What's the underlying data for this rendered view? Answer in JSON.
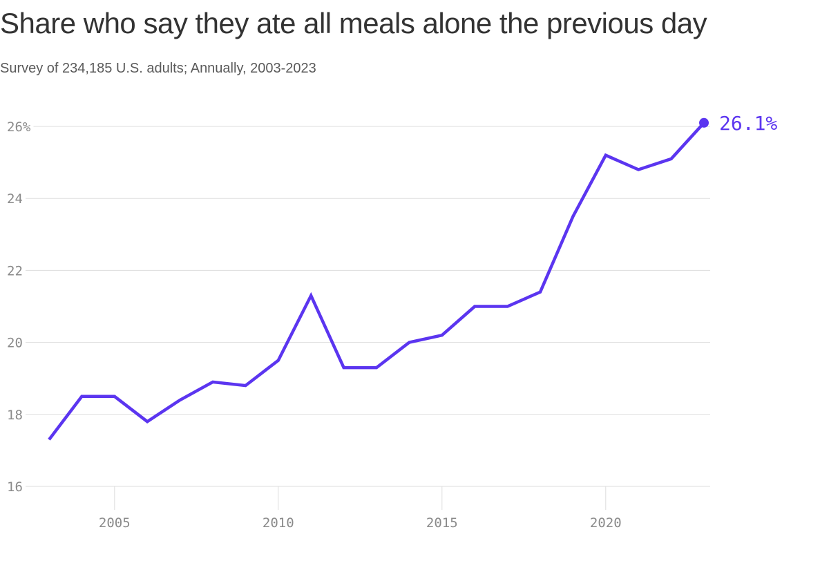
{
  "chart_data": {
    "type": "line",
    "title": "Share who say they ate all meals alone the previous day",
    "subtitle": "Survey of 234,185 U.S. adults; Annually, 2003-2023",
    "xlabel": "",
    "ylabel": "",
    "x": [
      2003,
      2004,
      2005,
      2006,
      2007,
      2008,
      2009,
      2010,
      2011,
      2012,
      2013,
      2014,
      2015,
      2016,
      2017,
      2018,
      2019,
      2020,
      2021,
      2022,
      2023
    ],
    "series": [
      {
        "name": "Ate all meals alone",
        "color": "#5b35f0",
        "values": [
          17.3,
          18.5,
          18.5,
          17.8,
          18.4,
          18.9,
          18.8,
          19.5,
          21.3,
          19.3,
          19.3,
          20.0,
          20.2,
          21.0,
          21.0,
          21.4,
          23.5,
          25.2,
          24.8,
          25.1,
          26.1
        ]
      }
    ],
    "ylim": [
      16,
      26
    ],
    "xlim": [
      2003,
      2023
    ],
    "yticks": [
      16,
      18,
      20,
      22,
      24,
      26
    ],
    "ytick_labels": [
      "16",
      "18",
      "20",
      "22",
      "24",
      "26%"
    ],
    "xticks": [
      2005,
      2010,
      2015,
      2020
    ],
    "xtick_labels": [
      "2005",
      "2010",
      "2015",
      "2020"
    ],
    "grid": true,
    "end_label": "26.1%",
    "legend": "none"
  }
}
